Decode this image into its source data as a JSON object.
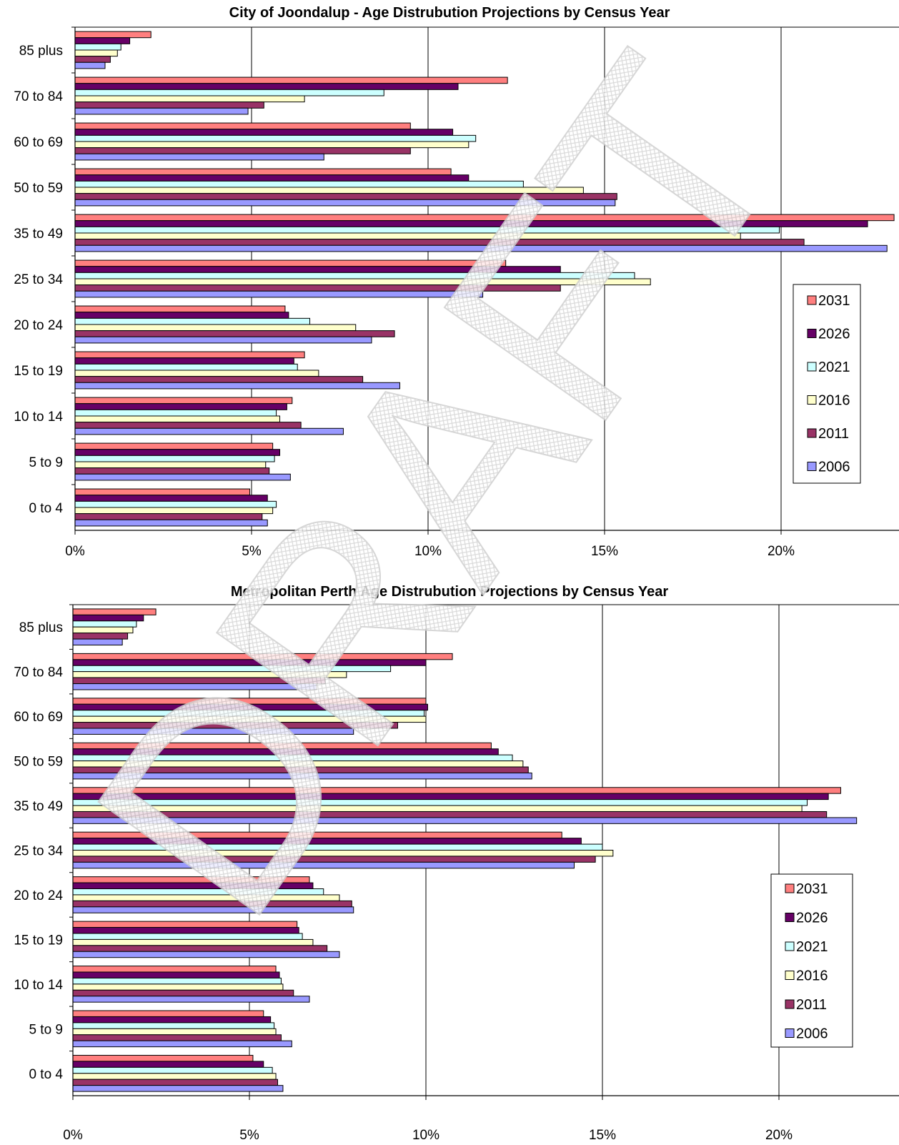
{
  "watermark": "DRAFT",
  "colors": {
    "2031": "#ff7f7f",
    "2026": "#660066",
    "2021": "#ccffff",
    "2016": "#ffffcc",
    "2011": "#993366",
    "2006": "#9999ff"
  },
  "chart_data": [
    {
      "type": "bar",
      "orientation": "horizontal",
      "title": "City of Joondalup - Age Distrubution Projections by Census Year",
      "categories": [
        "0 to 4",
        "5 to 9",
        "10 to 14",
        "15 to 19",
        "20 to 24",
        "25 to 34",
        "35 to 49",
        "50 to 59",
        "60 to 69",
        "70 to 84",
        "85 plus"
      ],
      "x_ticks": [
        "0%",
        "5%",
        "10%",
        "15%",
        "20%"
      ],
      "xlim": [
        0,
        22.8
      ],
      "grid": "vertical",
      "legend_position": "right",
      "series": [
        {
          "name": "2031",
          "values": [
            4.95,
            5.6,
            6.15,
            6.5,
            5.95,
            12.2,
            23.2,
            10.65,
            9.5,
            12.25,
            2.15
          ]
        },
        {
          "name": "2026",
          "values": [
            5.45,
            5.8,
            6.0,
            6.2,
            6.05,
            13.75,
            22.45,
            11.15,
            10.7,
            10.85,
            1.55
          ]
        },
        {
          "name": "2021",
          "values": [
            5.7,
            5.65,
            5.7,
            6.3,
            6.65,
            15.85,
            19.95,
            12.7,
            11.35,
            8.75,
            1.3
          ]
        },
        {
          "name": "2016",
          "values": [
            5.6,
            5.4,
            5.8,
            6.9,
            7.95,
            16.3,
            18.85,
            14.4,
            11.15,
            6.5,
            1.2
          ]
        },
        {
          "name": "2011",
          "values": [
            5.3,
            5.5,
            6.4,
            8.15,
            9.05,
            13.75,
            20.65,
            15.35,
            9.5,
            5.35,
            1.0
          ]
        },
        {
          "name": "2006",
          "values": [
            5.45,
            6.1,
            7.6,
            9.2,
            8.4,
            11.55,
            23.0,
            15.3,
            7.05,
            4.9,
            0.85
          ]
        }
      ]
    },
    {
      "type": "bar",
      "orientation": "horizontal",
      "title": "Metropolitan Perth Age Distrubution Projections by Census Year",
      "categories": [
        "0 to 4",
        "5 to 9",
        "10 to 14",
        "15 to 19",
        "20 to 24",
        "25 to 34",
        "35 to 49",
        "50 to 59",
        "60 to 69",
        "70 to 84",
        "85 plus"
      ],
      "x_ticks": [
        "0%",
        "5%",
        "10%",
        "15%",
        "20%"
      ],
      "xlim": [
        0,
        22.8
      ],
      "grid": "vertical",
      "legend_position": "right",
      "series": [
        {
          "name": "2031",
          "values": [
            5.1,
            5.4,
            5.75,
            6.35,
            6.7,
            13.85,
            21.75,
            11.85,
            10.0,
            10.75,
            2.35
          ]
        },
        {
          "name": "2026",
          "values": [
            5.4,
            5.6,
            5.85,
            6.4,
            6.8,
            14.4,
            21.4,
            12.05,
            10.05,
            10.0,
            2.0
          ]
        },
        {
          "name": "2021",
          "values": [
            5.65,
            5.7,
            5.9,
            6.5,
            7.1,
            15.0,
            20.8,
            12.45,
            9.95,
            9.0,
            1.8
          ]
        },
        {
          "name": "2016",
          "values": [
            5.75,
            5.75,
            5.95,
            6.8,
            7.55,
            15.3,
            20.65,
            12.75,
            10.0,
            7.75,
            1.7
          ]
        },
        {
          "name": "2011",
          "values": [
            5.8,
            5.9,
            6.25,
            7.2,
            7.9,
            14.8,
            21.35,
            12.9,
            9.2,
            7.15,
            1.55
          ]
        },
        {
          "name": "2006",
          "values": [
            5.95,
            6.2,
            6.7,
            7.55,
            7.95,
            14.2,
            22.2,
            13.0,
            7.95,
            6.9,
            1.4
          ]
        }
      ]
    }
  ]
}
